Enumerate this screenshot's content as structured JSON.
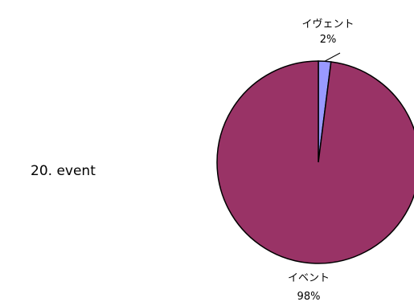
{
  "side_label": "20. event",
  "chart_data": {
    "type": "pie",
    "slices": [
      {
        "label": "イヴェント",
        "value": 2,
        "value_label": "2%",
        "color": "#9999ff"
      },
      {
        "label": "イベント",
        "value": 98,
        "value_label": "98%",
        "color": "#993366"
      }
    ]
  }
}
